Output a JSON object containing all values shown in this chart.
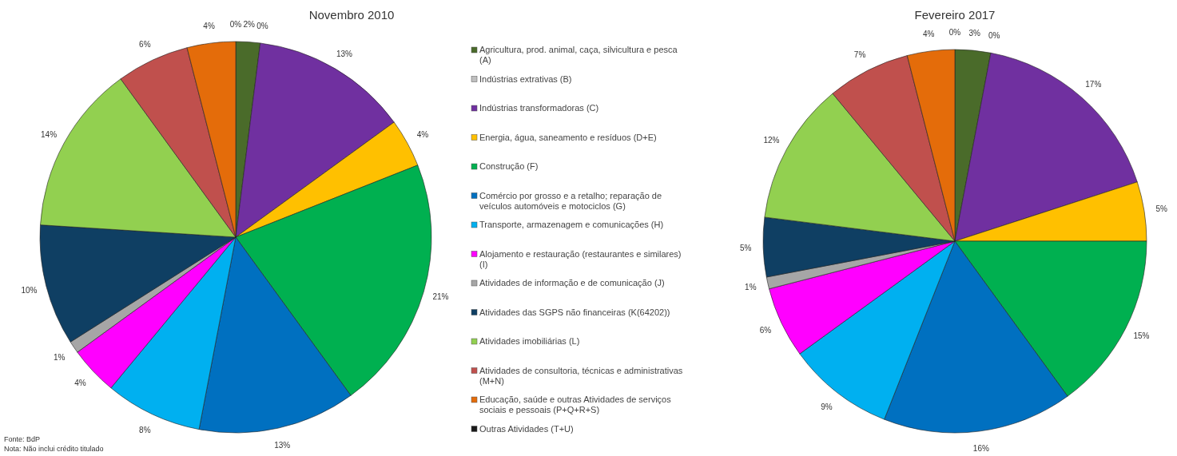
{
  "chart_data": [
    {
      "type": "pie",
      "title": "Novembro  2010",
      "categories": [
        "Agricultura, prod. animal, caça, silvicultura e pesca (A)",
        "Indústrias extrativas (B)",
        "Indústrias transformadoras (C)",
        "Energia, água, saneamento e resíduos (D+E)",
        "Construção (F)",
        "Comércio por grosso e a retalho; reparação de veículos automóveis e motociclos (G)",
        "Transporte, armazenagem e comunicações (H)",
        "Alojamento e restauração (restaurantes e similares) (I)",
        "Atividades de informação e de comunicação (J)",
        "Atividades das SGPS não financeiras (K(64202))",
        "Atividades imobiliárias (L)",
        "Atividades de consultoria, técnicas e administrativas (M+N)",
        "Educação, saúde e outras Atividades de serviços sociais e pessoais (P+Q+R+S)",
        "Outras Atividades (T+U)"
      ],
      "values": [
        2,
        0,
        13,
        4,
        21,
        13,
        8,
        4,
        1,
        10,
        14,
        6,
        4,
        0
      ],
      "colors": [
        "#4a6b2a",
        "#bfbfbf",
        "#7030a0",
        "#ffc000",
        "#00b050",
        "#0070c0",
        "#00b0f0",
        "#ff00ff",
        "#a6a6a6",
        "#0f3f63",
        "#92d050",
        "#c0504d",
        "#e46c0a",
        "#1a1a1a"
      ],
      "value_labels": [
        "2%",
        "0%",
        "13%",
        "4%",
        "21%",
        "13%",
        "8%",
        "4%",
        "1%",
        "10%",
        "14%",
        "6%",
        "4%",
        "0%"
      ],
      "legend": "right",
      "annotations": [
        "Fonte: BdP",
        "Nota: Não inclui crédito titulado"
      ]
    },
    {
      "type": "pie",
      "title": "Fevereiro 2017",
      "categories": [
        null,
        null,
        null,
        null,
        null,
        null,
        null,
        null,
        null,
        null,
        null,
        null,
        null,
        null
      ],
      "values": [
        3,
        0,
        17,
        5,
        15,
        16,
        9,
        6,
        1,
        5,
        12,
        7,
        4,
        0
      ],
      "colors": [
        "#4a6b2a",
        null,
        "#7030a0",
        "#ffc000",
        "#00b050",
        "#0070c0",
        "#00b0f0",
        "#ff00ff",
        "#a6a6a6",
        "#0f3f63",
        "#92d050",
        "#c0504d",
        "#e46c0a",
        null
      ],
      "value_labels": [
        "3%",
        "0%",
        "17%",
        "5%",
        "15%",
        "16%",
        "9%",
        "6%",
        "1%",
        "5%",
        "12%",
        "7%",
        "4%",
        "0%"
      ],
      "legend": false
    }
  ]
}
